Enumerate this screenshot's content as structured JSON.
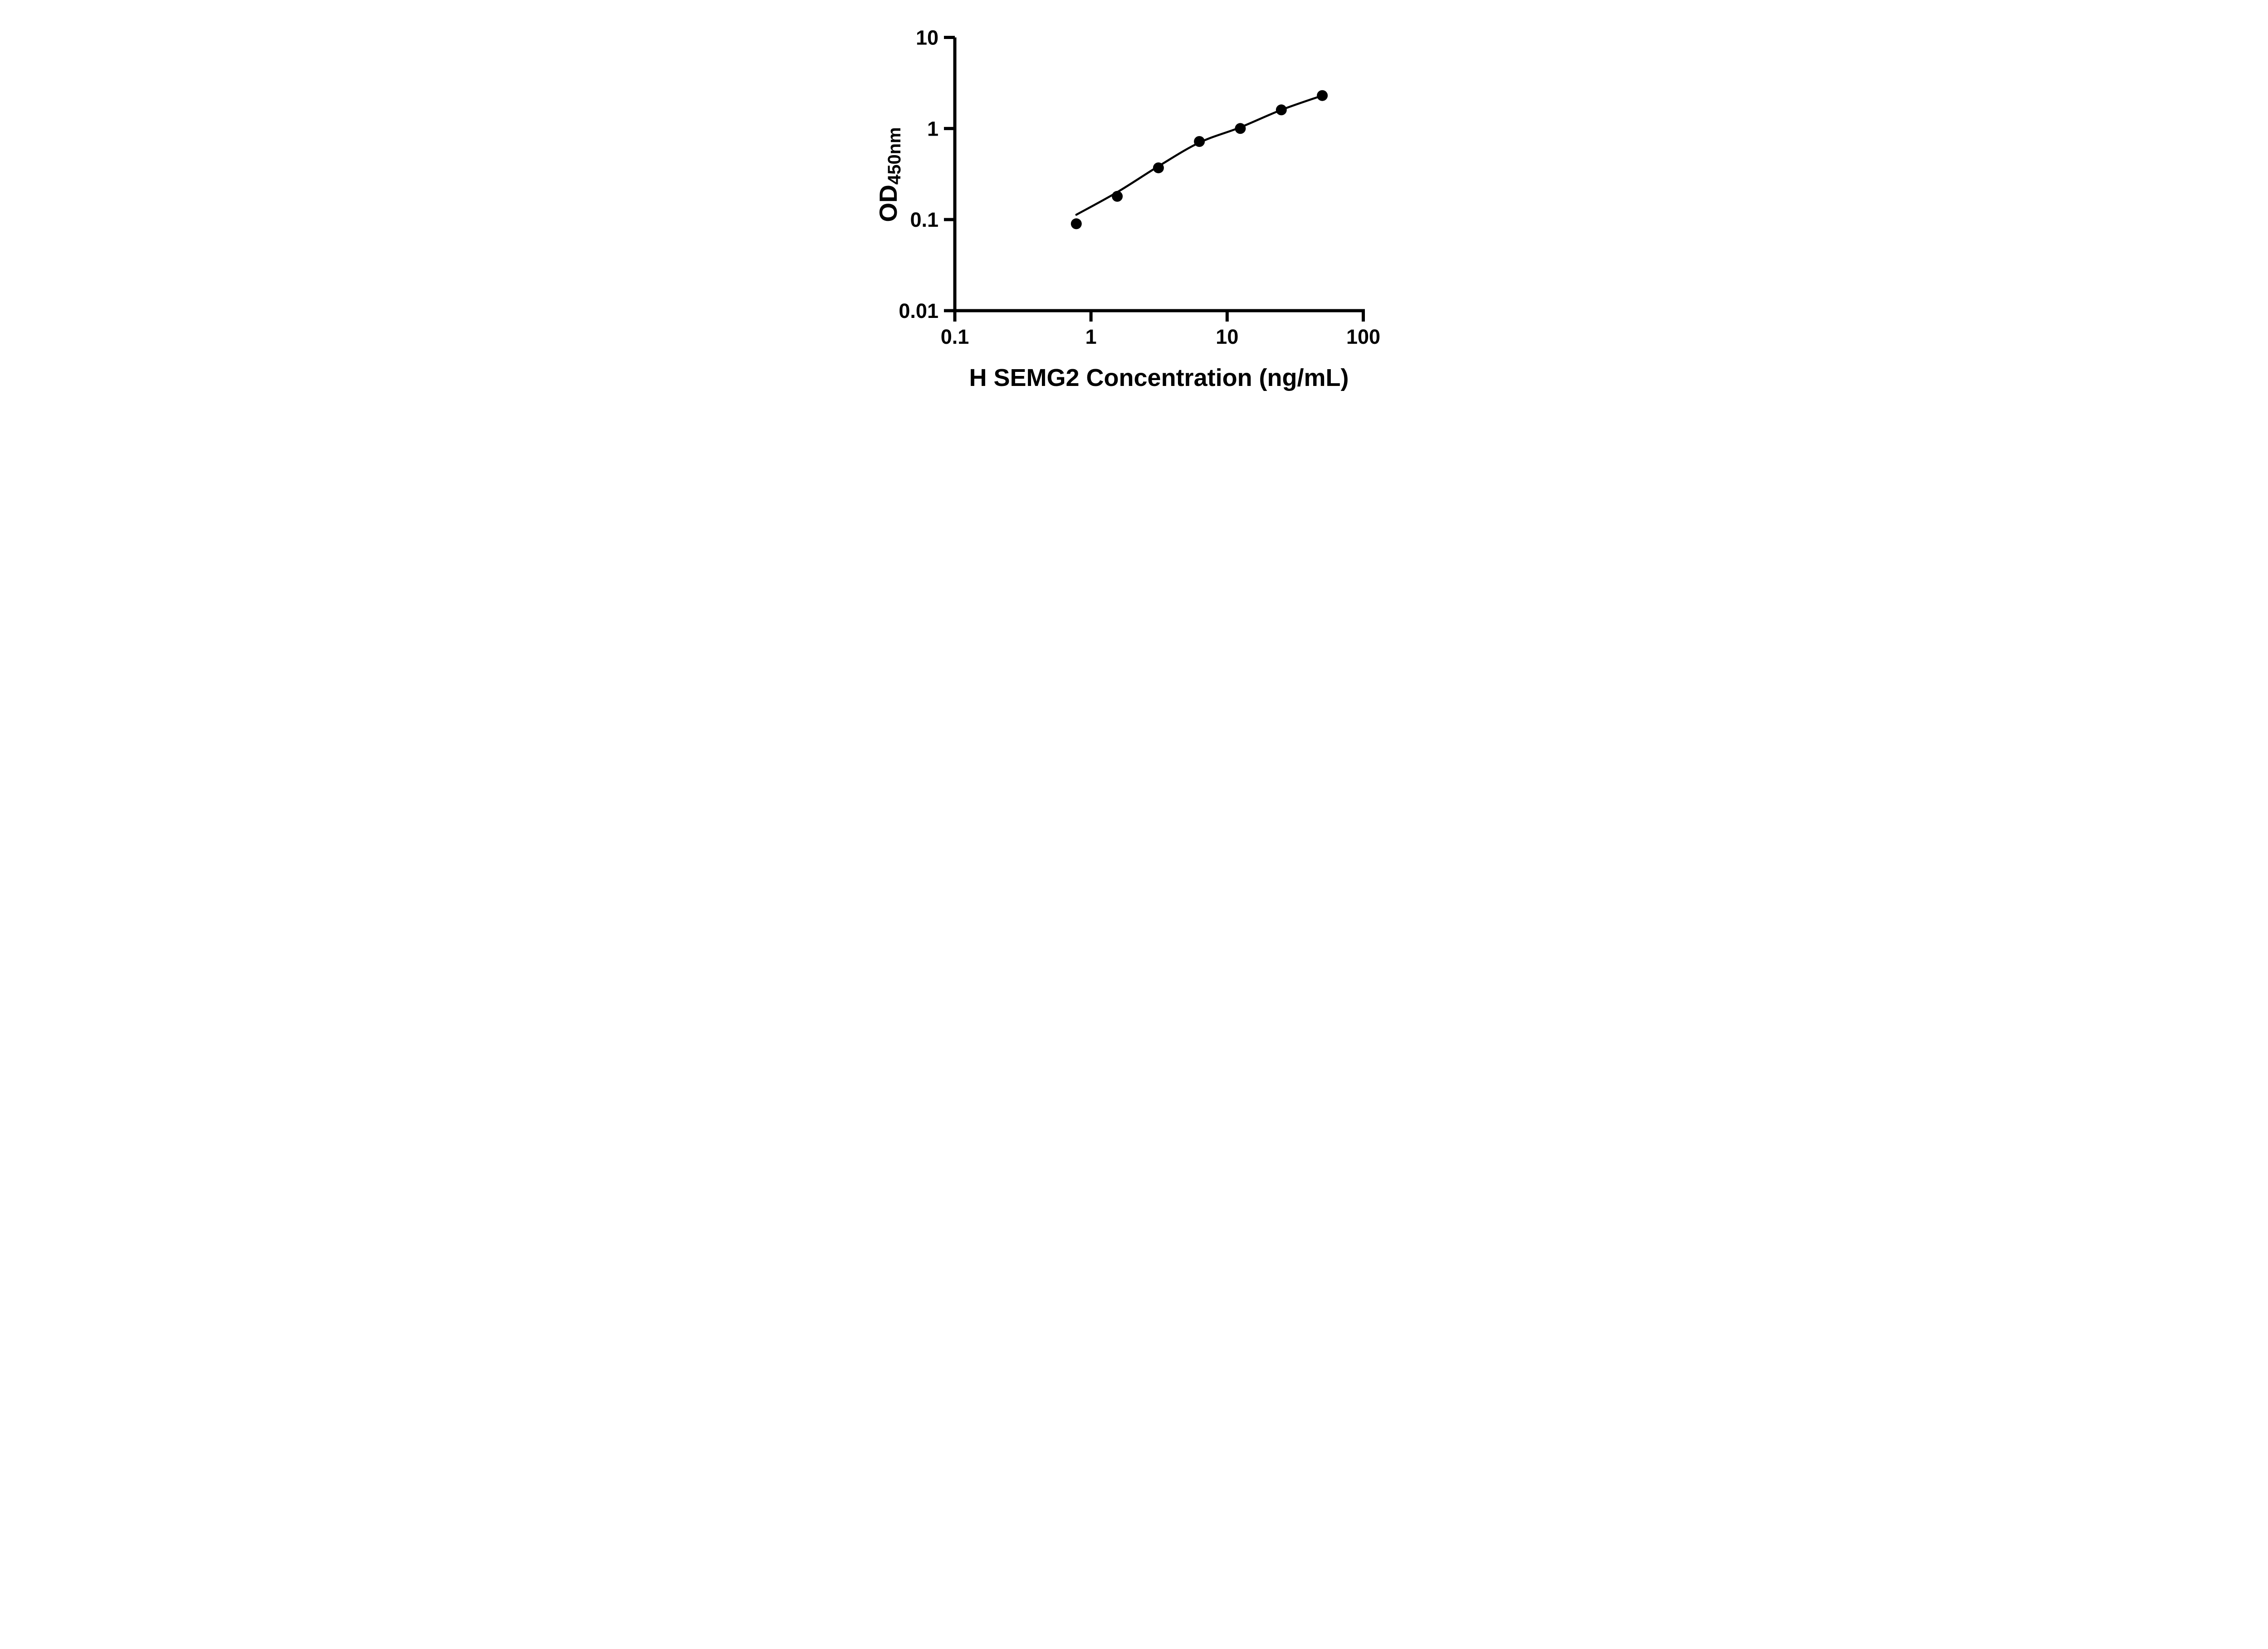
{
  "figure": {
    "background": "#ffffff",
    "ink_color": "#000000"
  },
  "chart_data": {
    "type": "scatter",
    "title": "",
    "xlabel": "H SEMG2 Concentration (ng/mL)",
    "ylabel": "OD450nm",
    "ylabel_main": "OD",
    "ylabel_sub": "450nm",
    "x_scale": "log10",
    "y_scale": "log10",
    "xlim": [
      0.1,
      100
    ],
    "ylim": [
      0.01,
      10
    ],
    "x_tick_values": [
      0.1,
      1,
      10,
      100
    ],
    "x_tick_labels": [
      "0.1",
      "1",
      "10",
      "100"
    ],
    "y_tick_values": [
      10,
      1,
      0.1,
      0.01
    ],
    "y_tick_labels": [
      "10",
      "1",
      "0.1",
      "0.01"
    ],
    "grid": false,
    "legend": "none",
    "marker": {
      "shape": "circle",
      "color": "#000000"
    },
    "curve_color": "#000000",
    "points": [
      {
        "x": 0.78,
        "y": 0.09
      },
      {
        "x": 1.56,
        "y": 0.18
      },
      {
        "x": 3.13,
        "y": 0.37
      },
      {
        "x": 6.25,
        "y": 0.72
      },
      {
        "x": 12.5,
        "y": 1.0
      },
      {
        "x": 25,
        "y": 1.6
      },
      {
        "x": 50,
        "y": 2.3
      }
    ],
    "fit_curve_points": [
      {
        "x": 0.78,
        "y": 0.113
      },
      {
        "x": 1.56,
        "y": 0.2
      },
      {
        "x": 3.13,
        "y": 0.385
      },
      {
        "x": 6.25,
        "y": 0.7
      },
      {
        "x": 12.5,
        "y": 1.03
      },
      {
        "x": 25,
        "y": 1.6
      },
      {
        "x": 50,
        "y": 2.3
      }
    ]
  }
}
